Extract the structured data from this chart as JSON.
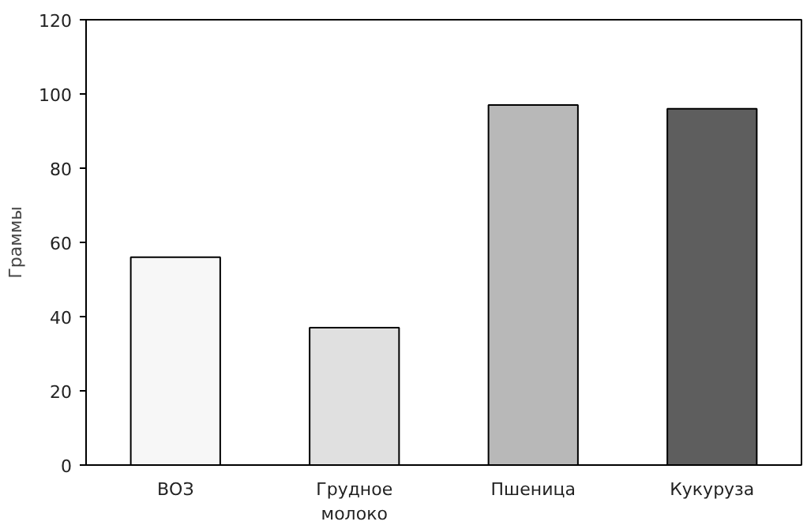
{
  "chart_data": {
    "type": "bar",
    "ylabel": "Граммы",
    "categories": [
      "ВОЗ",
      "Грудное\nмолоко",
      "Пшеница",
      "Кукуруза"
    ],
    "values": [
      56,
      37,
      97,
      96
    ],
    "colors": [
      "#f7f7f7",
      "#e0e0e0",
      "#b8b8b8",
      "#5e5e5e"
    ],
    "ylim": [
      0,
      120
    ],
    "yticks": [
      0,
      20,
      40,
      60,
      80,
      100,
      120
    ],
    "grid": false
  }
}
